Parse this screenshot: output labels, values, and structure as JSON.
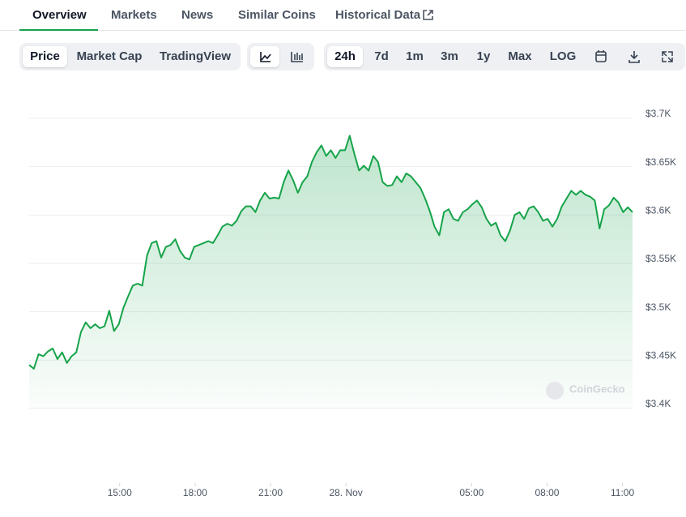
{
  "tabs": [
    "Overview",
    "Markets",
    "News",
    "Similar Coins",
    "Historical Data"
  ],
  "chart_type_buttons": [
    "Price",
    "Market Cap",
    "TradingView"
  ],
  "range_buttons": [
    "24h",
    "7d",
    "1m",
    "3m",
    "1y",
    "Max",
    "LOG"
  ],
  "watermark": "CoinGecko",
  "chart_data": {
    "type": "line",
    "color": "#16a34a",
    "grid": true,
    "x": [
      11.4,
      11.5875,
      11.775,
      11.9625,
      12.15,
      12.3375,
      12.525,
      12.7125,
      12.9,
      13.0875,
      13.275,
      13.4625,
      13.65,
      13.8375,
      14.025,
      14.2125,
      14.4,
      14.5875,
      14.775,
      14.9625,
      15.15,
      15.3375,
      15.525,
      15.7125,
      15.9,
      16.0875,
      16.275,
      16.4625,
      16.65,
      16.8375,
      17.025,
      17.2125,
      17.4,
      17.5875,
      17.775,
      17.9625,
      18.15,
      18.3375,
      18.525,
      18.7125,
      18.9,
      19.0875,
      19.275,
      19.4625,
      19.65,
      19.8375,
      20.025,
      20.2125,
      20.4,
      20.5875,
      20.775,
      20.9625,
      21.15,
      21.3375,
      21.525,
      21.7125,
      21.9,
      22.0875,
      22.275,
      22.4625,
      22.65,
      22.8375,
      23.025,
      23.2125,
      23.4,
      23.5875,
      23.775,
      23.9625,
      24.15,
      24.3375,
      24.525,
      24.7125,
      24.9,
      25.0875,
      25.275,
      25.4625,
      25.65,
      25.8375,
      26.025,
      26.2125,
      26.4,
      26.5875,
      26.775,
      26.9625,
      27.15,
      27.3375,
      27.525,
      27.7125,
      27.9,
      28.0875,
      28.275,
      28.4625,
      28.65,
      28.8375,
      29.025,
      29.2125,
      29.4,
      29.5875,
      29.775,
      29.9625,
      30.15,
      30.3375,
      30.525,
      30.7125,
      30.9,
      31.0875,
      31.275,
      31.4625,
      31.65,
      31.8375,
      32.025,
      32.2125,
      32.4,
      32.5875,
      32.775,
      32.9625,
      33.15,
      33.3375,
      33.525,
      33.7125,
      33.9,
      34.0875,
      34.275,
      34.4625,
      34.65,
      34.8375,
      35.025,
      35.2125,
      35.4
    ],
    "values": [
      3445,
      3441,
      3456,
      3454,
      3459,
      3462,
      3451,
      3458,
      3447,
      3454,
      3458,
      3479,
      3489,
      3483,
      3487,
      3483,
      3485,
      3501,
      3480,
      3487,
      3504,
      3516,
      3527,
      3529,
      3527,
      3558,
      3571,
      3573,
      3556,
      3567,
      3569,
      3575,
      3563,
      3556,
      3554,
      3567,
      3569,
      3571,
      3573,
      3571,
      3579,
      3588,
      3591,
      3589,
      3594,
      3604,
      3609,
      3609,
      3603,
      3615,
      3623,
      3617,
      3618,
      3617,
      3634,
      3646,
      3636,
      3623,
      3634,
      3640,
      3655,
      3665,
      3672,
      3661,
      3667,
      3659,
      3667,
      3667,
      3682,
      3663,
      3646,
      3651,
      3646,
      3661,
      3655,
      3634,
      3630,
      3631,
      3640,
      3634,
      3643,
      3640,
      3634,
      3628,
      3617,
      3604,
      3588,
      3579,
      3603,
      3606,
      3596,
      3594,
      3603,
      3606,
      3611,
      3615,
      3608,
      3596,
      3589,
      3592,
      3579,
      3573,
      3584,
      3600,
      3603,
      3596,
      3607,
      3609,
      3603,
      3594,
      3596,
      3588,
      3596,
      3609,
      3617,
      3625,
      3621,
      3625,
      3621,
      3619,
      3615,
      3586,
      3606,
      3610,
      3618,
      3613,
      3603,
      3608,
      3603
    ],
    "xlim": [
      11.4,
      35.4
    ],
    "xticks": [
      {
        "value": 15,
        "label": "15:00"
      },
      {
        "value": 18,
        "label": "18:00"
      },
      {
        "value": 21,
        "label": "21:00"
      },
      {
        "value": 24,
        "label": "28. Nov"
      },
      {
        "value": 29,
        "label": "05:00"
      },
      {
        "value": 32,
        "label": "08:00"
      },
      {
        "value": 35,
        "label": "11:00"
      }
    ],
    "ylim": [
      3400,
      3700
    ],
    "yticks": [
      {
        "value": 3400,
        "label": "$3.4K"
      },
      {
        "value": 3450,
        "label": "$3.45K"
      },
      {
        "value": 3500,
        "label": "$3.5K"
      },
      {
        "value": 3550,
        "label": "$3.55K"
      },
      {
        "value": 3600,
        "label": "$3.6K"
      },
      {
        "value": 3650,
        "label": "$3.65K"
      },
      {
        "value": 3700,
        "label": "$3.7K"
      }
    ]
  }
}
